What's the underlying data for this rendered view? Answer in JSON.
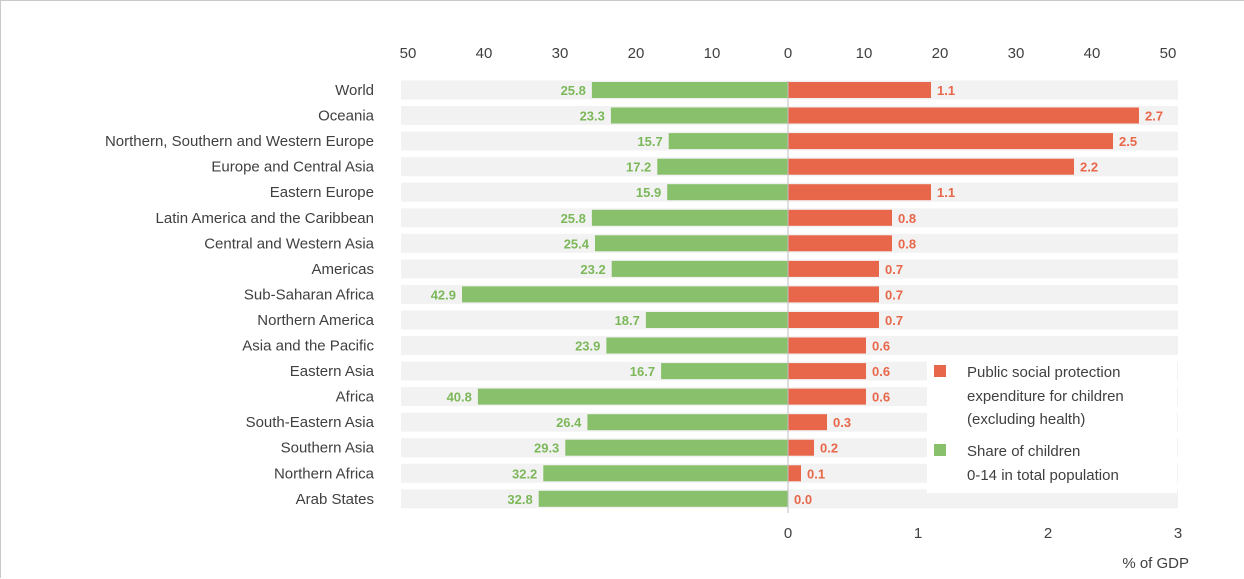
{
  "chart_data": {
    "type": "bar",
    "orientation": "horizontal-diverging",
    "categories": [
      "World",
      "Oceania",
      "Northern, Southern and Western Europe",
      "Europe and Central Asia",
      "Eastern Europe",
      "Latin America and the Caribbean",
      "Central and Western Asia",
      "Americas",
      "Sub-Saharan Africa",
      "Northern America",
      "Asia and the Pacific",
      "Eastern Asia",
      "Africa",
      "South-Eastern Asia",
      "Southern Asia",
      "Northern Africa",
      "Arab States"
    ],
    "series": [
      {
        "name": "Share of children 0-14 in total population",
        "legend_lines": [
          "Share of children",
          "0-14 in total population"
        ],
        "color": "#88c06b",
        "label_color": "#7cb85a",
        "axis": "top",
        "direction": "left",
        "values": [
          25.8,
          23.3,
          15.7,
          17.2,
          15.9,
          25.8,
          25.4,
          23.2,
          42.9,
          18.7,
          23.9,
          16.7,
          40.8,
          26.4,
          29.3,
          32.2,
          32.8
        ]
      },
      {
        "name": "Public social protection expenditure for children (excluding health)",
        "legend_lines": [
          "Public social protection",
          "expenditure for children",
          "(excluding health)"
        ],
        "color": "#e8674a",
        "label_color": "#e8674a",
        "axis": "bottom",
        "direction": "right",
        "values": [
          1.1,
          2.7,
          2.5,
          2.2,
          1.1,
          0.8,
          0.8,
          0.7,
          0.7,
          0.7,
          0.6,
          0.6,
          0.6,
          0.3,
          0.2,
          0.1,
          0.0
        ]
      }
    ],
    "top_axis": {
      "ticks_left": [
        "50",
        "40",
        "30",
        "20",
        "10"
      ],
      "ticks_right": [
        "0",
        "10",
        "20",
        "30",
        "40",
        "50"
      ],
      "range": [
        0,
        50
      ]
    },
    "bottom_axis": {
      "ticks": [
        "0",
        "1",
        "2",
        "3"
      ],
      "range": [
        0,
        3
      ],
      "label": "% of GDP"
    },
    "band_color": "#f2f2f2",
    "legend_placement": "lower-right",
    "grid": false
  }
}
